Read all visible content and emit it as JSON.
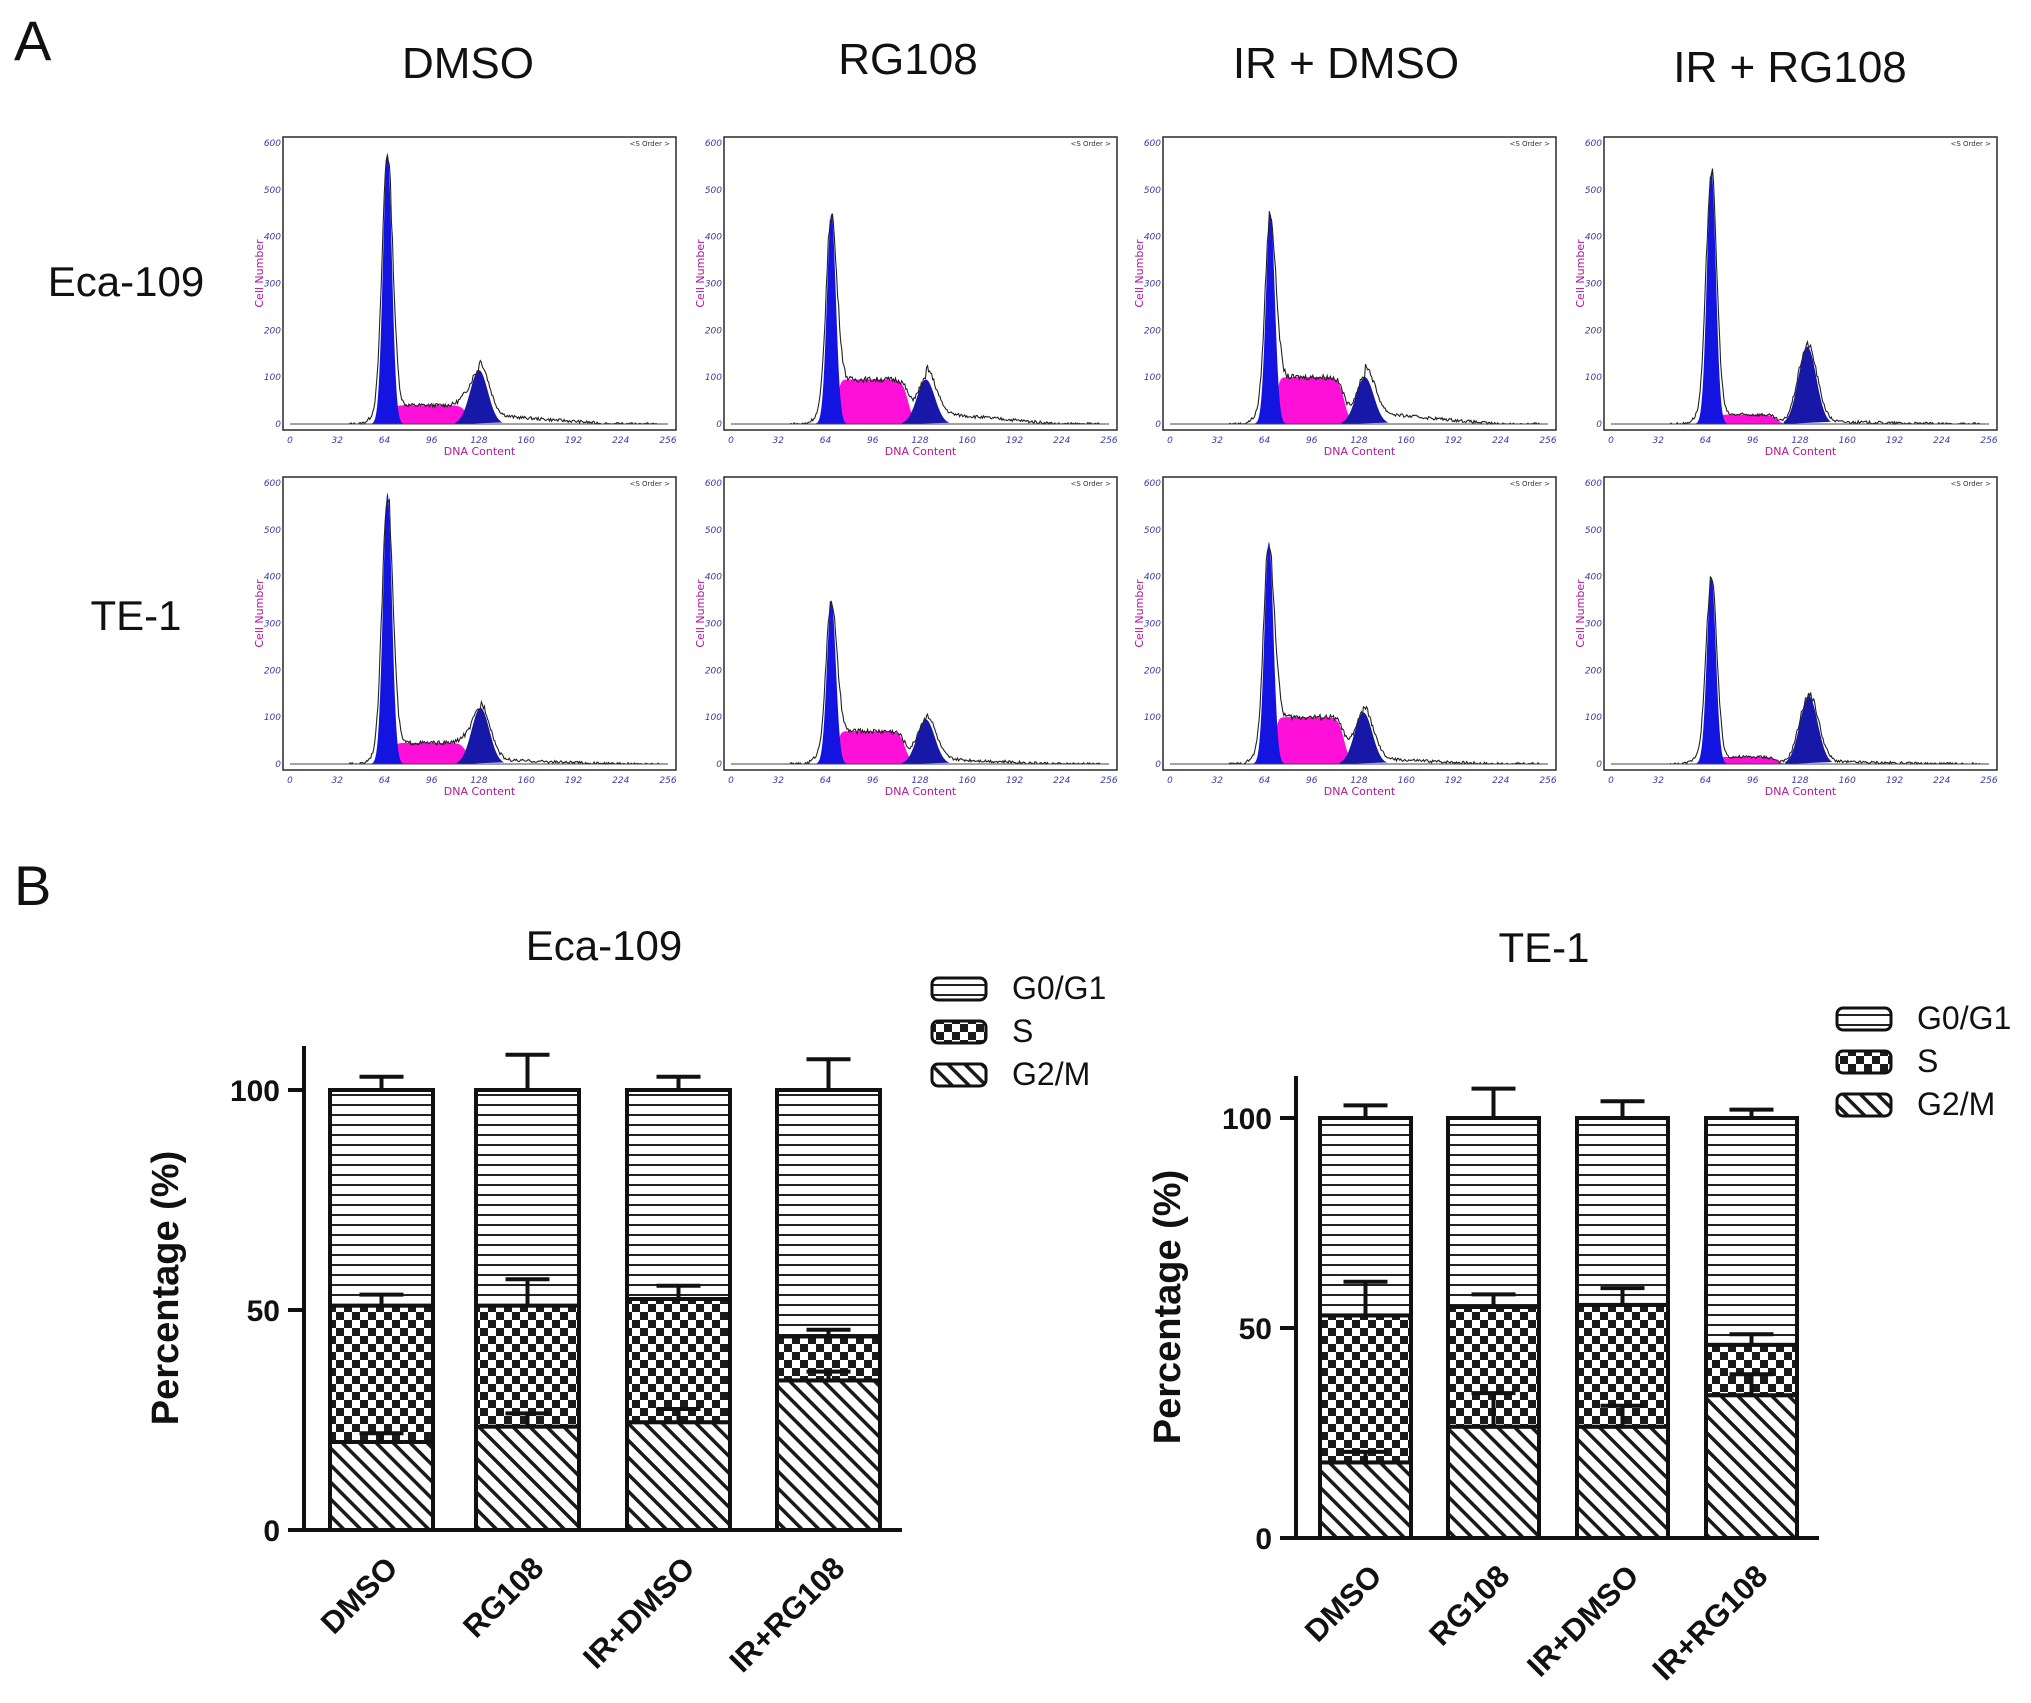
{
  "panels": {
    "a": "A",
    "b": "B"
  },
  "panel_a": {
    "columns": [
      "DMSO",
      "RG108",
      "IR + DMSO",
      "IR + RG108"
    ],
    "rows": [
      "Eca-109",
      "TE-1"
    ],
    "x_label": "DNA Content",
    "y_label": "Cell Number",
    "x_ticks": [
      "0",
      "32",
      "64",
      "96",
      "128",
      "160",
      "192",
      "224",
      "256"
    ],
    "y_ticks": [
      "0",
      "100",
      "200",
      "300",
      "400",
      "500",
      "600"
    ],
    "note": "<S Order >",
    "colors": {
      "g1": "#1414e0",
      "s": "#ff10d8",
      "g2": "#1818a8",
      "outline": "#222222"
    },
    "histograms": [
      {
        "row": 0,
        "col": 0,
        "g1_peak": 580,
        "g1_pos": 66,
        "s_level": 40,
        "s_end": 120,
        "g2_peak": 115,
        "g2_pos": 128,
        "tail": 20
      },
      {
        "row": 0,
        "col": 1,
        "g1_peak": 450,
        "g1_pos": 68,
        "s_level": 95,
        "s_end": 120,
        "g2_peak": 95,
        "g2_pos": 132,
        "tail": 25
      },
      {
        "row": 0,
        "col": 2,
        "g1_peak": 450,
        "g1_pos": 68,
        "s_level": 100,
        "s_end": 118,
        "g2_peak": 100,
        "g2_pos": 132,
        "tail": 25
      },
      {
        "row": 0,
        "col": 3,
        "g1_peak": 540,
        "g1_pos": 68,
        "s_level": 20,
        "s_end": 112,
        "g2_peak": 165,
        "g2_pos": 133,
        "tail": 6
      },
      {
        "row": 1,
        "col": 0,
        "g1_peak": 580,
        "g1_pos": 66,
        "s_level": 45,
        "s_end": 120,
        "g2_peak": 120,
        "g2_pos": 129,
        "tail": 10
      },
      {
        "row": 1,
        "col": 1,
        "g1_peak": 350,
        "g1_pos": 68,
        "s_level": 70,
        "s_end": 118,
        "g2_peak": 95,
        "g2_pos": 132,
        "tail": 12
      },
      {
        "row": 1,
        "col": 2,
        "g1_peak": 475,
        "g1_pos": 67,
        "s_level": 100,
        "s_end": 118,
        "g2_peak": 110,
        "g2_pos": 131,
        "tail": 12
      },
      {
        "row": 1,
        "col": 3,
        "g1_peak": 400,
        "g1_pos": 68,
        "s_level": 15,
        "s_end": 112,
        "g2_peak": 145,
        "g2_pos": 134,
        "tail": 6
      }
    ]
  },
  "chart_data": [
    {
      "type": "bar",
      "stacked": true,
      "title": "Eca-109",
      "ylabel": "Percentage (%)",
      "xlabel": "",
      "ylim": [
        0,
        110
      ],
      "yticks": [
        "0",
        "50",
        "100"
      ],
      "categories": [
        "DMSO",
        "RG108",
        "IR+DMSO",
        "IR+RG108"
      ],
      "series": [
        {
          "name": "G2/M",
          "pattern": "diagonal",
          "values": [
            20,
            23.5,
            24.5,
            34
          ],
          "errors": [
            2,
            3,
            3,
            2
          ]
        },
        {
          "name": "S",
          "pattern": "checker",
          "values": [
            31,
            27.5,
            28,
            10
          ],
          "errors": [
            2.5,
            6,
            3,
            1.5
          ]
        },
        {
          "name": "G0/G1",
          "pattern": "horizontal",
          "values": [
            49,
            49,
            47.5,
            56
          ],
          "errors": [
            3,
            8,
            3,
            7
          ]
        }
      ],
      "legend": [
        "G0/G1",
        "S",
        "G2/M"
      ],
      "legend_position": "top-right"
    },
    {
      "type": "bar",
      "stacked": true,
      "title": "TE-1",
      "ylabel": "Percentage (%)",
      "xlabel": "",
      "ylim": [
        0,
        110
      ],
      "yticks": [
        "0",
        "50",
        "100"
      ],
      "categories": [
        "DMSO",
        "RG108",
        "IR+DMSO",
        "IR+RG108"
      ],
      "series": [
        {
          "name": "G2/M",
          "pattern": "diagonal",
          "values": [
            18,
            26.5,
            26.5,
            34
          ],
          "errors": [
            2.5,
            8,
            5,
            5
          ]
        },
        {
          "name": "S",
          "pattern": "checker",
          "values": [
            35,
            28.5,
            29,
            12
          ],
          "errors": [
            8,
            3,
            4,
            2.5
          ]
        },
        {
          "name": "G0/G1",
          "pattern": "horizontal",
          "values": [
            47,
            45,
            44.5,
            54
          ],
          "errors": [
            3,
            7,
            4,
            2
          ]
        }
      ],
      "legend": [
        "G0/G1",
        "S",
        "G2/M"
      ],
      "legend_position": "top-right"
    }
  ]
}
